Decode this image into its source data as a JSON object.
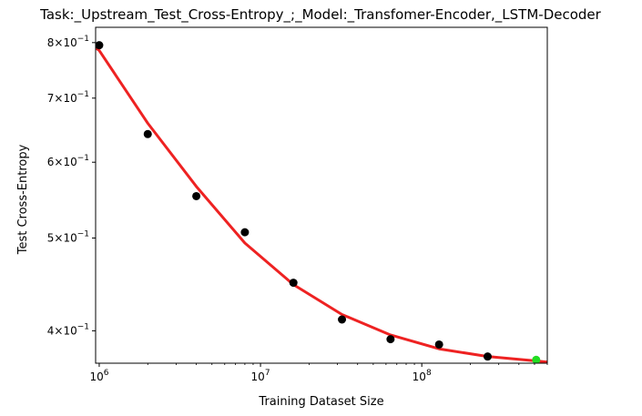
{
  "chart_data": {
    "type": "scatter",
    "title": "Task:_Upstream_Test_Cross-Entropy_;_Model:_Transfomer-Encoder,_LSTM-Decoder",
    "xlabel": "Training Dataset Size",
    "ylabel": "Test Cross-Entropy",
    "xscale": "log",
    "yscale": "log",
    "xlim": [
      950000,
      600000000
    ],
    "ylim": [
      0.37,
      0.83
    ],
    "grid": false,
    "x_ticks": [
      {
        "value": 1000000,
        "base": "10",
        "exp": "6"
      },
      {
        "value": 10000000,
        "base": "10",
        "exp": "7"
      },
      {
        "value": 100000000,
        "base": "10",
        "exp": "8"
      }
    ],
    "y_ticks": [
      {
        "value": 0.4,
        "mant": "4",
        "exp": "−1"
      },
      {
        "value": 0.5,
        "mant": "5",
        "exp": "−1"
      },
      {
        "value": 0.6,
        "mant": "6",
        "exp": "−1"
      },
      {
        "value": 0.7,
        "mant": "7",
        "exp": "−1"
      },
      {
        "value": 0.8,
        "mant": "8",
        "exp": "−1"
      }
    ],
    "series": [
      {
        "kind": "scatter",
        "color": "#000000",
        "points": [
          {
            "x": 1000000,
            "y": 0.795
          },
          {
            "x": 2000000,
            "y": 0.642
          },
          {
            "x": 4000000,
            "y": 0.553
          },
          {
            "x": 8000000,
            "y": 0.507
          },
          {
            "x": 16000000,
            "y": 0.449
          },
          {
            "x": 32000000,
            "y": 0.411
          },
          {
            "x": 64000000,
            "y": 0.392
          },
          {
            "x": 128000000,
            "y": 0.387
          },
          {
            "x": 256000000,
            "y": 0.376
          }
        ]
      },
      {
        "kind": "scatter",
        "color": "#22dd22",
        "points": [
          {
            "x": 512000000,
            "y": 0.373
          }
        ]
      },
      {
        "kind": "line",
        "color": "#ee2222",
        "points": [
          {
            "x": 950000,
            "y": 0.79
          },
          {
            "x": 1000000,
            "y": 0.785
          },
          {
            "x": 2000000,
            "y": 0.659
          },
          {
            "x": 4000000,
            "y": 0.566
          },
          {
            "x": 8000000,
            "y": 0.494
          },
          {
            "x": 16000000,
            "y": 0.447
          },
          {
            "x": 32000000,
            "y": 0.416
          },
          {
            "x": 64000000,
            "y": 0.396
          },
          {
            "x": 128000000,
            "y": 0.383
          },
          {
            "x": 256000000,
            "y": 0.376
          },
          {
            "x": 512000000,
            "y": 0.372
          },
          {
            "x": 600000000,
            "y": 0.371
          }
        ]
      }
    ]
  }
}
